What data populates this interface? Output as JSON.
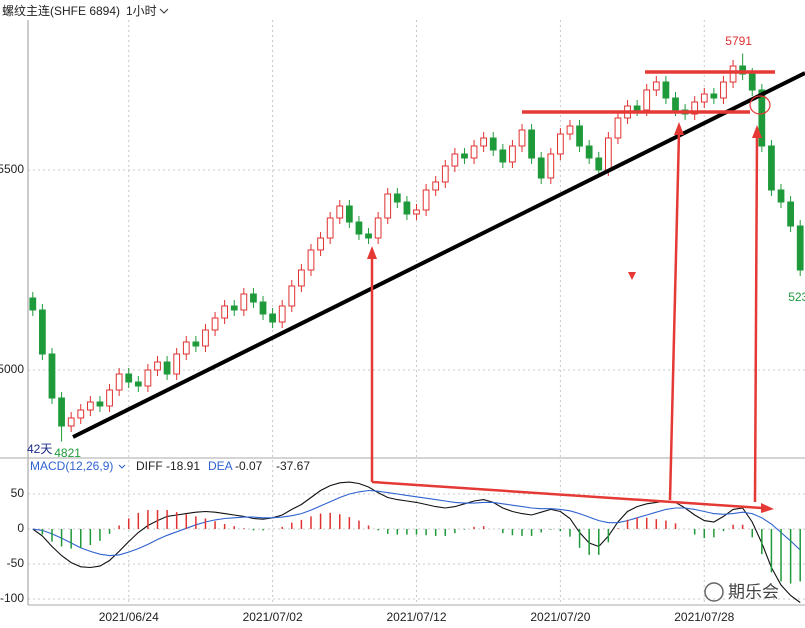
{
  "header": {
    "title": "螺纹主连(SHFE 6894)",
    "period": "1小时"
  },
  "watermark": "期乐会",
  "chart_data": [
    {
      "type": "candlestick",
      "annotation": "42天",
      "up_color": "#e03030",
      "down_color": "#1f9a3a",
      "ylim": [
        4787.5,
        5875
      ],
      "yticks": [
        5000,
        5500
      ],
      "grid": true,
      "open": [
        5180,
        5150,
        5040,
        4930,
        4860,
        4880,
        4900,
        4920,
        4910,
        4950,
        4990,
        4970,
        4960,
        5000,
        5020,
        4990,
        5040,
        5070,
        5060,
        5100,
        5130,
        5160,
        5150,
        5190,
        5170,
        5140,
        5120,
        5160,
        5210,
        5250,
        5300,
        5330,
        5380,
        5410,
        5370,
        5340,
        5330,
        5380,
        5440,
        5420,
        5390,
        5400,
        5450,
        5470,
        5510,
        5540,
        5530,
        5560,
        5580,
        5550,
        5520,
        5560,
        5600,
        5530,
        5480,
        5540,
        5590,
        5610,
        5560,
        5530,
        5500,
        5580,
        5630,
        5660,
        5650,
        5700,
        5720,
        5680,
        5650,
        5640,
        5670,
        5690,
        5680,
        5720,
        5760,
        5740,
        5700,
        5560,
        5450,
        5420,
        5360
      ],
      "high": [
        5195,
        5165,
        5055,
        4945,
        4895,
        4915,
        4935,
        4935,
        4965,
        5005,
        5005,
        4985,
        5015,
        5035,
        5035,
        5055,
        5085,
        5085,
        5115,
        5145,
        5175,
        5175,
        5205,
        5205,
        5185,
        5155,
        5175,
        5225,
        5265,
        5315,
        5345,
        5395,
        5425,
        5425,
        5385,
        5355,
        5395,
        5455,
        5455,
        5435,
        5415,
        5465,
        5485,
        5525,
        5555,
        5555,
        5575,
        5595,
        5595,
        5565,
        5575,
        5615,
        5615,
        5545,
        5555,
        5605,
        5625,
        5625,
        5575,
        5545,
        5595,
        5645,
        5675,
        5675,
        5715,
        5735,
        5735,
        5695,
        5665,
        5685,
        5705,
        5705,
        5735,
        5775,
        5791,
        5755,
        5715,
        5575,
        5465,
        5435,
        5375
      ],
      "low": [
        5135,
        5025,
        4915,
        4821,
        4845,
        4865,
        4885,
        4895,
        4895,
        4935,
        4955,
        4945,
        4945,
        4985,
        4975,
        4975,
        5025,
        5045,
        5045,
        5085,
        5115,
        5135,
        5135,
        5155,
        5125,
        5105,
        5105,
        5145,
        5195,
        5235,
        5285,
        5315,
        5365,
        5355,
        5325,
        5315,
        5315,
        5365,
        5405,
        5375,
        5375,
        5385,
        5435,
        5455,
        5495,
        5515,
        5515,
        5545,
        5535,
        5505,
        5505,
        5545,
        5515,
        5465,
        5465,
        5525,
        5575,
        5545,
        5515,
        5485,
        5485,
        5565,
        5615,
        5635,
        5635,
        5685,
        5665,
        5635,
        5625,
        5625,
        5655,
        5665,
        5665,
        5705,
        5725,
        5685,
        5545,
        5435,
        5405,
        5345,
        5235
      ],
      "close": [
        5150,
        5040,
        4930,
        4860,
        4880,
        4900,
        4920,
        4910,
        4950,
        4990,
        4970,
        4960,
        5000,
        5020,
        4990,
        5040,
        5070,
        5060,
        5100,
        5130,
        5160,
        5150,
        5190,
        5170,
        5140,
        5120,
        5160,
        5210,
        5250,
        5300,
        5330,
        5380,
        5410,
        5370,
        5340,
        5330,
        5380,
        5440,
        5420,
        5390,
        5400,
        5450,
        5470,
        5510,
        5540,
        5530,
        5560,
        5580,
        5550,
        5520,
        5560,
        5600,
        5530,
        5480,
        5540,
        5590,
        5610,
        5560,
        5530,
        5500,
        5580,
        5630,
        5660,
        5650,
        5700,
        5720,
        5680,
        5650,
        5640,
        5670,
        5690,
        5680,
        5720,
        5760,
        5740,
        5700,
        5560,
        5450,
        5420,
        5360,
        5250
      ]
    },
    {
      "type": "line",
      "title": "MACD(12,26,9)",
      "categories": [
        null,
        null,
        null,
        null,
        null,
        null,
        null,
        null,
        null,
        null,
        "2021/06/24",
        null,
        null,
        null,
        null,
        null,
        null,
        null,
        null,
        null,
        null,
        null,
        null,
        null,
        null,
        "2021/07/02",
        null,
        null,
        null,
        null,
        null,
        null,
        null,
        null,
        null,
        null,
        null,
        null,
        null,
        null,
        "2021/07/12",
        null,
        null,
        null,
        null,
        null,
        null,
        null,
        null,
        null,
        null,
        null,
        null,
        null,
        null,
        "2021/07/20",
        null,
        null,
        null,
        null,
        null,
        null,
        null,
        null,
        null,
        null,
        null,
        null,
        null,
        null,
        "2021/07/28",
        null,
        null,
        null,
        null,
        null,
        null,
        null,
        null,
        null,
        null
      ],
      "ylim": [
        -108.6,
        72.8
      ],
      "yticks": [
        50,
        0,
        -50,
        -100
      ],
      "grid": true,
      "series": [
        {
          "name": "DIFF",
          "readout": -18.91,
          "color": "#111111",
          "values": [
            0,
            -10,
            -25,
            -38,
            -48,
            -54,
            -55,
            -53,
            -45,
            -32,
            -18,
            -5,
            5,
            12,
            18,
            20,
            22,
            24,
            25,
            24,
            22,
            20,
            18,
            15,
            14,
            16,
            20,
            28,
            35,
            45,
            55,
            62,
            66,
            67,
            65,
            60,
            52,
            45,
            42,
            40,
            38,
            35,
            32,
            30,
            32,
            36,
            40,
            42,
            38,
            30,
            25,
            22,
            20,
            24,
            28,
            25,
            15,
            -5,
            -20,
            -25,
            -10,
            10,
            25,
            32,
            36,
            38,
            40,
            38,
            30,
            20,
            12,
            10,
            18,
            28,
            30,
            10,
            -20,
            -55,
            -80,
            -95,
            -105
          ]
        },
        {
          "name": "DEA",
          "readout": -0.07,
          "color": "#2f62d0",
          "values": [
            0,
            -2,
            -7,
            -13,
            -20,
            -27,
            -32,
            -36,
            -38,
            -37,
            -33,
            -28,
            -22,
            -15,
            -9,
            -4,
            1,
            6,
            10,
            13,
            15,
            16,
            17,
            17,
            16,
            16,
            17,
            19,
            22,
            27,
            33,
            39,
            45,
            50,
            53,
            55,
            54,
            52,
            50,
            48,
            46,
            44,
            42,
            40,
            38,
            37,
            37,
            38,
            38,
            36,
            34,
            32,
            30,
            29,
            29,
            28,
            26,
            22,
            17,
            12,
            9,
            9,
            12,
            16,
            20,
            24,
            28,
            30,
            30,
            28,
            25,
            22,
            21,
            22,
            24,
            22,
            16,
            7,
            -5,
            -17,
            -30
          ]
        },
        {
          "style": "bar",
          "readout": -37.67,
          "color": "#e03030",
          "down_color": "#1f9a3a",
          "values": [
            0,
            -8,
            -18,
            -25,
            -28,
            -27,
            -23,
            -17,
            -7,
            5,
            15,
            23,
            27,
            27,
            27,
            24,
            21,
            18,
            15,
            11,
            7,
            4,
            1,
            -2,
            -2,
            0,
            3,
            9,
            13,
            18,
            22,
            23,
            21,
            17,
            12,
            5,
            -2,
            -7,
            -8,
            -8,
            -8,
            -9,
            -10,
            -10,
            -6,
            -1,
            3,
            4,
            0,
            -6,
            -9,
            -10,
            -10,
            -5,
            -1,
            -3,
            -11,
            -27,
            -37,
            -37,
            -19,
            1,
            13,
            16,
            16,
            14,
            12,
            8,
            0,
            -8,
            -13,
            -12,
            -3,
            6,
            6,
            -12,
            -36,
            -62,
            -75,
            -78,
            -75
          ]
        }
      ]
    }
  ]
}
